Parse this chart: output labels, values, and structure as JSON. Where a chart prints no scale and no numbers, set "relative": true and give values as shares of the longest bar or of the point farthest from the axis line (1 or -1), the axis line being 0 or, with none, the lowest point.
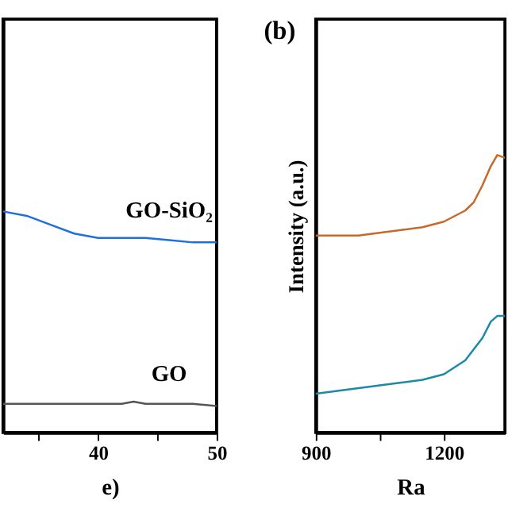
{
  "chart_data": [
    {
      "type": "line",
      "xlabel": "e)",
      "relative": true,
      "legend": false,
      "grid": false,
      "xlim": [
        32,
        50
      ],
      "xticks": [
        {
          "value": 35,
          "label": null
        },
        40,
        {
          "value": 45,
          "label": null
        },
        50
      ],
      "x": [
        32,
        34,
        36,
        38,
        40,
        42,
        43,
        44,
        46,
        48,
        50
      ],
      "series": [
        {
          "name": "GO-SiO₂",
          "color": "#1f6fe0",
          "values": [
            1.0,
            0.98,
            0.94,
            0.9,
            0.88,
            0.88,
            0.88,
            0.88,
            0.87,
            0.86,
            0.86
          ]
        },
        {
          "name": "GO",
          "color": "#555555",
          "values": [
            0.13,
            0.13,
            0.13,
            0.13,
            0.13,
            0.13,
            0.14,
            0.13,
            0.13,
            0.13,
            0.12
          ]
        }
      ]
    },
    {
      "type": "line",
      "xlabel": "Ra",
      "ylabel": "Intensity (a.u.)",
      "annotations": [
        "(b)"
      ],
      "relative": true,
      "legend": false,
      "grid": false,
      "xlim": [
        900,
        1343
      ],
      "xticks": [
        900,
        {
          "value": 1050,
          "label": null
        },
        1200
      ],
      "x": [
        900,
        1000,
        1100,
        1150,
        1200,
        1250,
        1270,
        1290,
        1310,
        1325,
        1343
      ],
      "series": [
        {
          "color": "#c8692a",
          "values": [
            0.71,
            0.71,
            0.73,
            0.74,
            0.76,
            0.8,
            0.83,
            0.89,
            0.96,
            1.0,
            0.99
          ]
        },
        {
          "color": "#1a8aa6",
          "values": [
            0.14,
            0.16,
            0.18,
            0.19,
            0.21,
            0.26,
            0.3,
            0.34,
            0.4,
            0.42,
            0.42
          ]
        }
      ]
    }
  ]
}
